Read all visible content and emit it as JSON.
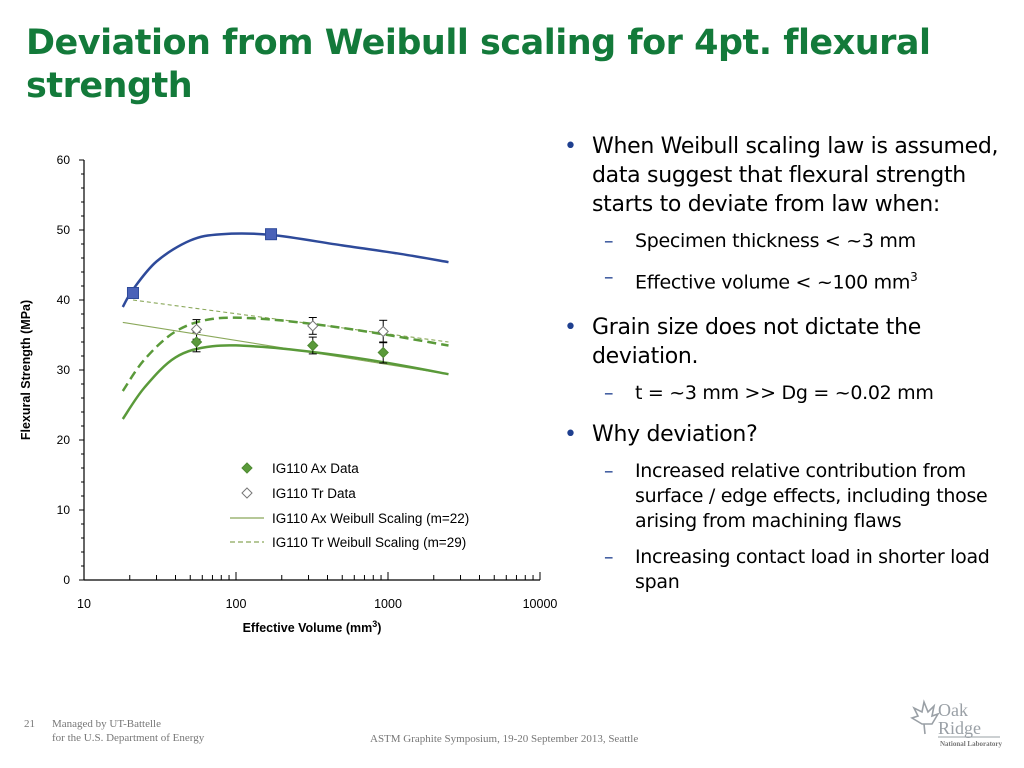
{
  "slide": {
    "title": "Deviation from Weibull scaling for 4pt. flexural strength",
    "bullets": [
      {
        "text": "When Weibull scaling law is assumed, data suggest that flexural strength starts to deviate from law when:",
        "sub": [
          "Specimen thickness < ~3 mm",
          "Effective volume < ~100 mm",
          "3"
        ]
      },
      {
        "text": "Grain size does not dictate the deviation.",
        "sub": [
          "t = ~3 mm >> Dg = ~0.02 mm"
        ]
      },
      {
        "text": "Why deviation?",
        "sub": [
          "Increased relative contribution from surface / edge effects, including those arising from machining flaws",
          "Increasing contact load in shorter load span"
        ]
      }
    ]
  },
  "footer": {
    "page": "21",
    "managed_line1": "Managed by UT-Battelle",
    "managed_line2": "for the U.S. Department of Energy",
    "event": "ASTM Graphite Symposium, 19-20 September 2013, Seattle"
  },
  "logo": {
    "word1": "Oak",
    "word2": "Ridge",
    "tag": "National Laboratory"
  },
  "colors": {
    "title": "#137a3a",
    "blue": "#2e4a9a",
    "green": "#5a9a3a",
    "bullet": "#1f3f8f"
  },
  "chart_data": {
    "type": "scatter",
    "xscale": "log",
    "xlim": [
      10,
      10000
    ],
    "ylim": [
      0,
      60
    ],
    "xticks": [
      "10",
      "100",
      "1000",
      "10000"
    ],
    "yticks": [
      "0",
      "10",
      "20",
      "30",
      "40",
      "50",
      "60"
    ],
    "xlabel": "Effective Volume (mm",
    "xlabel_sup": "3",
    "xlabel_end": ")",
    "ylabel": "Flexural Strength (MPa)",
    "legend_position": "bottom-center",
    "series": [
      {
        "name": "IG110 Ax Data",
        "marker": "filled-diamond",
        "points": [
          [
            55,
            34.0
          ],
          [
            320,
            33.5
          ],
          [
            930,
            32.5
          ]
        ],
        "errors": [
          1.4,
          1.2,
          1.5
        ]
      },
      {
        "name": "IG110 Tr Data",
        "marker": "open-diamond",
        "points": [
          [
            55,
            35.8
          ],
          [
            320,
            36.3
          ],
          [
            930,
            35.5
          ]
        ],
        "errors": [
          1.4,
          1.2,
          1.6
        ]
      },
      {
        "name": "IG110 Ax Weibull Scaling (m=22)",
        "style": "solid-thin",
        "points": [
          [
            18,
            36.8
          ],
          [
            2500,
            29.4
          ]
        ]
      },
      {
        "name": "IG110 Tr Weibull Scaling (m=29)",
        "style": "dashed-thin",
        "points": [
          [
            21,
            40.0
          ],
          [
            2500,
            34.0
          ]
        ]
      },
      {
        "name": "",
        "style": "blue-curve",
        "marker": "square",
        "curve": [
          [
            18,
            39.0
          ],
          [
            21,
            41.5
          ],
          [
            30,
            45.5
          ],
          [
            50,
            48.5
          ],
          [
            80,
            49.4
          ],
          [
            170,
            49.3
          ],
          [
            500,
            47.8
          ],
          [
            1200,
            46.6
          ],
          [
            2500,
            45.4
          ]
        ],
        "points": [
          [
            21,
            41.0
          ],
          [
            170,
            49.4
          ]
        ]
      },
      {
        "name": "",
        "style": "green-dash-thick",
        "curve": [
          [
            18,
            27.0
          ],
          [
            25,
            31.5
          ],
          [
            40,
            35.5
          ],
          [
            70,
            37.3
          ],
          [
            150,
            37.3
          ],
          [
            400,
            36.3
          ],
          [
            1000,
            35.0
          ],
          [
            2500,
            33.5
          ]
        ]
      },
      {
        "name": "",
        "style": "green-solid-thick",
        "curve": [
          [
            18,
            23.0
          ],
          [
            25,
            27.5
          ],
          [
            40,
            31.8
          ],
          [
            70,
            33.4
          ],
          [
            150,
            33.3
          ],
          [
            400,
            32.3
          ],
          [
            1000,
            31.0
          ],
          [
            2500,
            29.4
          ]
        ]
      }
    ]
  }
}
